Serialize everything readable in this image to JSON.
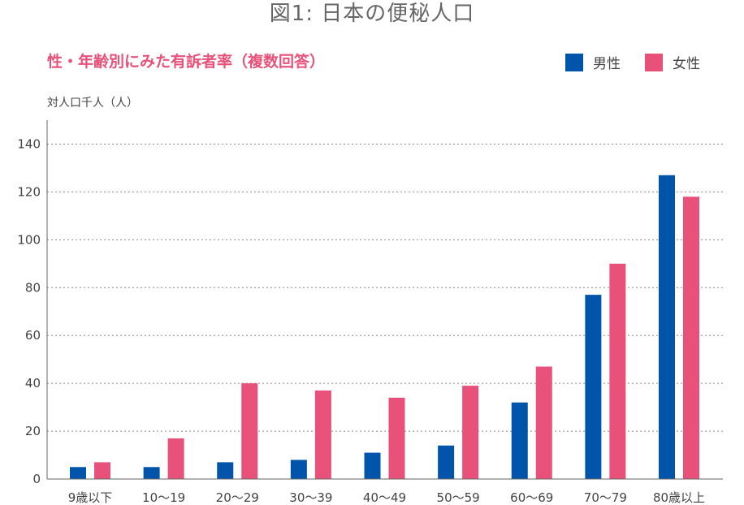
{
  "header": {
    "title": "図1: 日本の便秘人口",
    "subtitle": "性・年齢別にみた有訴者率（複数回答）"
  },
  "chart_data": {
    "type": "bar",
    "ylabel": "対人口千人（人）",
    "ylim": [
      0,
      150
    ],
    "yticks": [
      0,
      20,
      40,
      60,
      80,
      100,
      120,
      140
    ],
    "grid": true,
    "legend_position": "top-right",
    "categories": [
      "9歳以下",
      "10〜19",
      "20〜29",
      "30〜39",
      "40〜49",
      "50〜59",
      "60〜69",
      "70〜79",
      "80歳以上"
    ],
    "series": [
      {
        "name": "男性",
        "color": "#0055aa",
        "values": [
          5,
          5,
          7,
          8,
          11,
          14,
          32,
          77,
          127
        ]
      },
      {
        "name": "女性",
        "color": "#e8527a",
        "values": [
          7,
          17,
          40,
          37,
          34,
          39,
          47,
          90,
          118
        ]
      }
    ]
  }
}
